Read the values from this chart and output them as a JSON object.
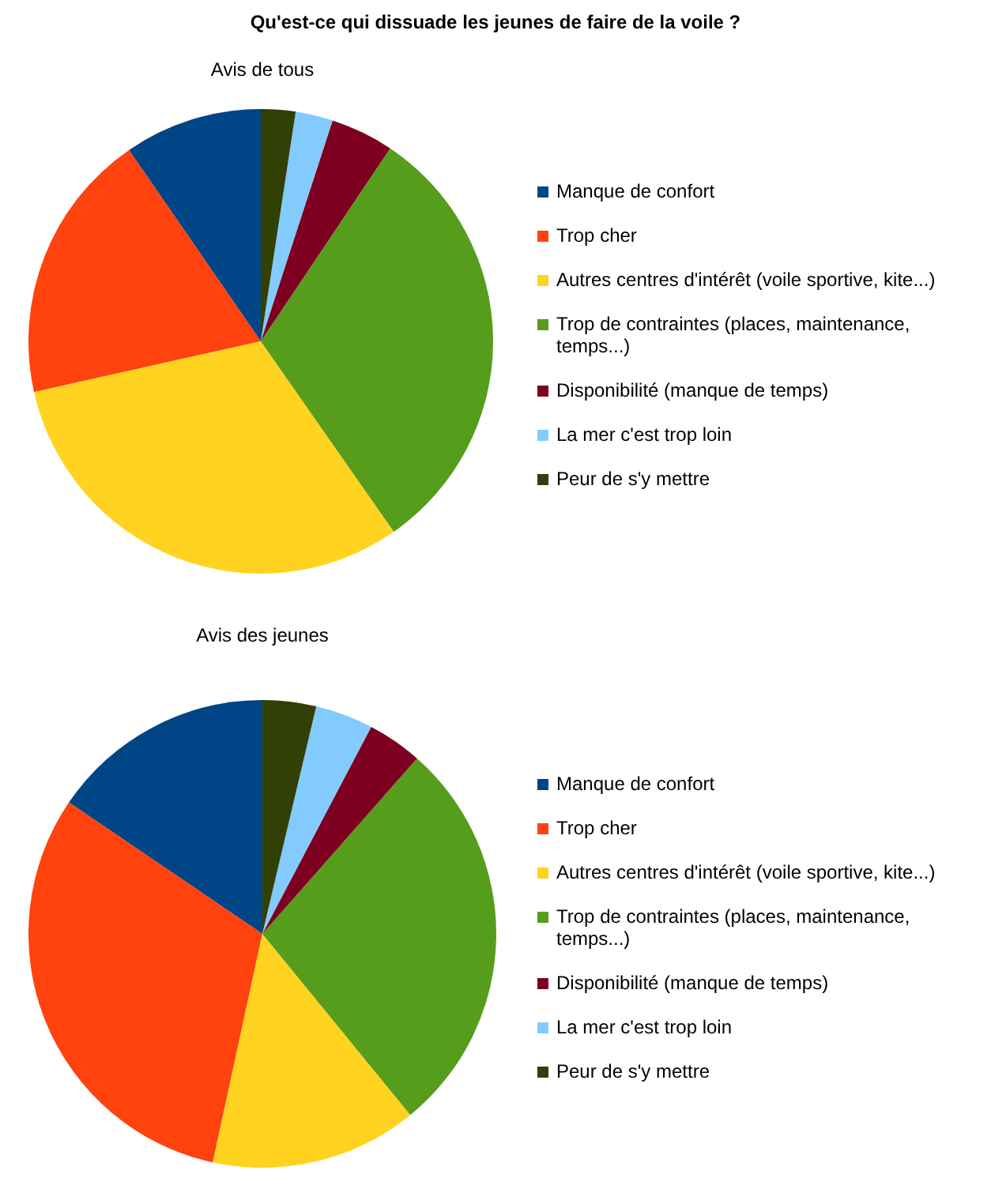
{
  "chart_data": [
    {
      "type": "pie",
      "title": "Qu'est-ce qui dissuade les jeunes de faire de la voile ?",
      "subtitle": "Avis de tous",
      "legend": "right",
      "categories": [
        "Manque de confort",
        "Trop cher",
        "Autres centres d'intérêt (voile sportive, kite...)",
        "Trop de contraintes (places, maintenance, temps...)",
        "Disponibilité (manque de temps)",
        "La mer c'est trop loin",
        "Peur de s'y mettre"
      ],
      "values": [
        9.6,
        18.9,
        31.2,
        30.9,
        4.4,
        2.6,
        2.4
      ],
      "colors": [
        "#004586",
        "#ff420e",
        "#ffd320",
        "#579d1c",
        "#7e0021",
        "#83caff",
        "#314004"
      ]
    },
    {
      "type": "pie",
      "title": "Avis des jeunes",
      "legend": "right",
      "categories": [
        "Manque de confort",
        "Trop cher",
        "Autres centres d'intérêt (voile sportive, kite...)",
        "Trop de contraintes (places, maintenance, temps...)",
        "Disponibilité (manque de temps)",
        "La mer c'est trop loin",
        "Peur de s'y mettre"
      ],
      "values": [
        15.5,
        31.1,
        14.3,
        27.6,
        3.8,
        4.0,
        3.7
      ],
      "colors": [
        "#004586",
        "#ff420e",
        "#ffd320",
        "#579d1c",
        "#7e0021",
        "#83caff",
        "#314004"
      ]
    }
  ]
}
